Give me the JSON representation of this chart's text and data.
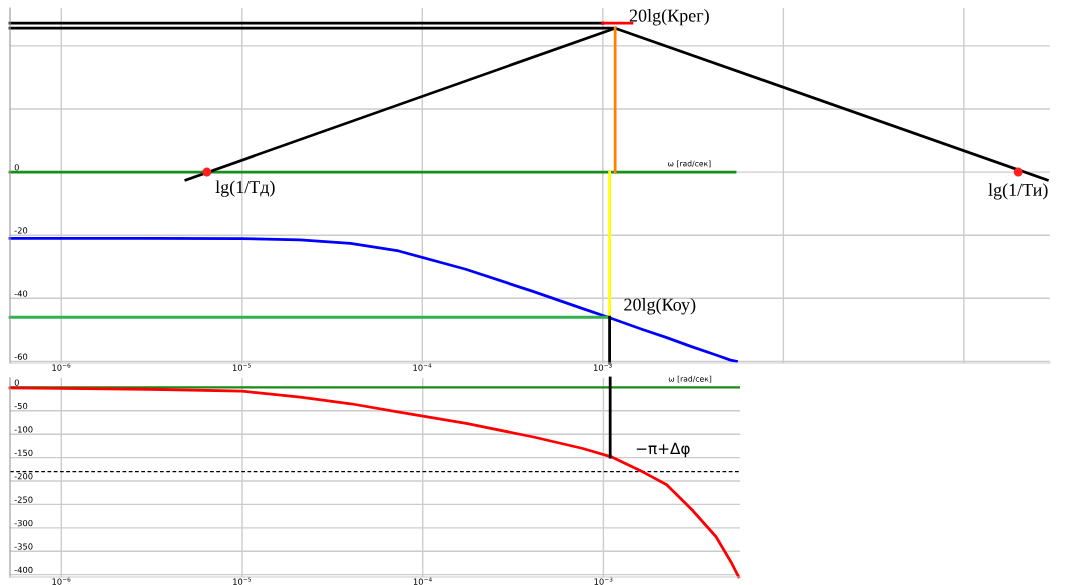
{
  "chart_data": [
    {
      "type": "line",
      "log": "x",
      "grid": true,
      "xlim": [
        5.2e-07,
        0.3
      ],
      "ylim": [
        -60.5,
        52
      ],
      "xticks": [
        {
          "value": 1e-06,
          "label": "10$^{−6}$"
        },
        {
          "value": 1e-05,
          "label": "10$^{−5}$"
        },
        {
          "value": 0.0001,
          "label": "10$^{−4}$"
        },
        {
          "value": 0.001,
          "label": "10$^{−3}$"
        },
        {
          "value": 0.01,
          "label": null
        },
        {
          "value": 0.1,
          "label": null
        }
      ],
      "yticks": [
        {
          "value": 40,
          "label": null
        },
        {
          "value": 20,
          "label": null
        },
        0,
        -20,
        -40,
        -60
      ],
      "series": [
        {
          "color": "#0000ff",
          "x": [
            5.2e-07,
            1e-06,
            3.1e-06,
            1e-05,
            2.1e-05,
            4e-05,
            7.4e-05,
            0.000174,
            0.00041,
            0.00076,
            0.00112,
            0.00166,
            0.00224,
            0.0031,
            0.0042,
            0.0051,
            0.0055
          ],
          "values": [
            -21,
            -21,
            -21,
            -21.1,
            -21.5,
            -22.6,
            -25,
            -30.8,
            -37.8,
            -43.1,
            -46.4,
            -49.9,
            -52.4,
            -55.3,
            -57.9,
            -59.6,
            -60
          ]
        },
        {
          "color": "#1a8c1a",
          "x": [
            5.2e-07,
            0.0054
          ],
          "values": [
            0,
            0
          ]
        },
        {
          "color": "#000000",
          "x": [
            4.9e-06,
            0.00117,
            0.29
          ],
          "values": [
            -2.5,
            45.6,
            -2.5
          ]
        },
        {
          "color": "#000000",
          "x": [
            5.2e-07,
            0.00117
          ],
          "values": [
            45.6,
            45.6
          ]
        },
        {
          "color": "#000000",
          "x": [
            5.2e-07,
            0.001
          ],
          "values": [
            47.2,
            47.2
          ]
        },
        {
          "color": "#ff0000",
          "x": [
            0.001,
            0.00145
          ],
          "values": [
            47.2,
            47.2
          ]
        },
        {
          "color": "#ff8000",
          "x": [
            0.00117,
            0.00117
          ],
          "values": [
            45.6,
            0
          ]
        },
        {
          "color": "#ffff00",
          "x": [
            0.00109,
            0.00109
          ],
          "values": [
            0,
            -46
          ]
        },
        {
          "color": "#33b050",
          "x": [
            5.2e-07,
            0.00109
          ],
          "values": [
            -46,
            -46
          ]
        },
        {
          "color": "#000000",
          "x": [
            0.00109,
            0.00109
          ],
          "values": [
            -46,
            -60.5
          ]
        },
        {
          "type": "scatter",
          "marker": "circle",
          "color": "#ff2020",
          "x": [
            6.4e-06,
            0.2
          ],
          "values": [
            0,
            0
          ]
        }
      ],
      "annotations": [
        {
          "text": "20lg(Крег)",
          "x": 0.00117,
          "y": 45.6
        },
        {
          "text": "lg(1/Тд)",
          "x": 6.4e-06,
          "y": 0
        },
        {
          "text": "lg(1/Ти)",
          "x": 0.2,
          "y": 0
        },
        {
          "text": "20lg(Коу)",
          "x": 0.00109,
          "y": -46
        },
        {
          "text": "ω [rad/сек]",
          "x": 0.0036,
          "y": 0
        }
      ]
    },
    {
      "type": "line",
      "log": "x",
      "grid": true,
      "xlim": [
        5.2e-07,
        0.0057
      ],
      "ylim": [
        -405,
        20
      ],
      "xticks": [
        {
          "value": 1e-06,
          "label": "10$^{−6}$"
        },
        {
          "value": 1e-05,
          "label": "10$^{−5}$"
        },
        {
          "value": 0.0001,
          "label": "10$^{−4}$"
        },
        {
          "value": 0.001,
          "label": "10$^{−3}$"
        }
      ],
      "yticks": [
        0,
        -50,
        -100,
        -150,
        -200,
        -250,
        -300,
        -350,
        -400
      ],
      "ref_lines": [
        {
          "axis": "y",
          "value": 0,
          "color": "#1a8c1a",
          "line_style": "solid"
        },
        {
          "axis": "y",
          "value": -180,
          "color": "#000000",
          "line_style": "dashed"
        }
      ],
      "series": [
        {
          "color": "#ff0000",
          "x": [
            5.2e-07,
            1e-06,
            3.1e-06,
            1e-05,
            2.1e-05,
            4e-05,
            7.4e-05,
            0.000174,
            0.00041,
            0.00076,
            0.00112,
            0.00166,
            0.00224,
            0.0031,
            0.0042,
            0.0051,
            0.0056
          ],
          "values": [
            -1,
            -2,
            -4,
            -8,
            -21,
            -35,
            -53,
            -77,
            -106,
            -130,
            -149,
            -181,
            -208,
            -262,
            -319,
            -374,
            -405
          ]
        },
        {
          "color": "#000000",
          "x": [
            0.00109,
            0.00109
          ],
          "values": [
            20,
            -149
          ]
        }
      ],
      "annotations": [
        {
          "text": "−π+Δφ",
          "x": 0.00109,
          "y": -149
        },
        {
          "text": "ω [rad/сек]",
          "x": 0.0036,
          "y": 0
        }
      ]
    }
  ]
}
